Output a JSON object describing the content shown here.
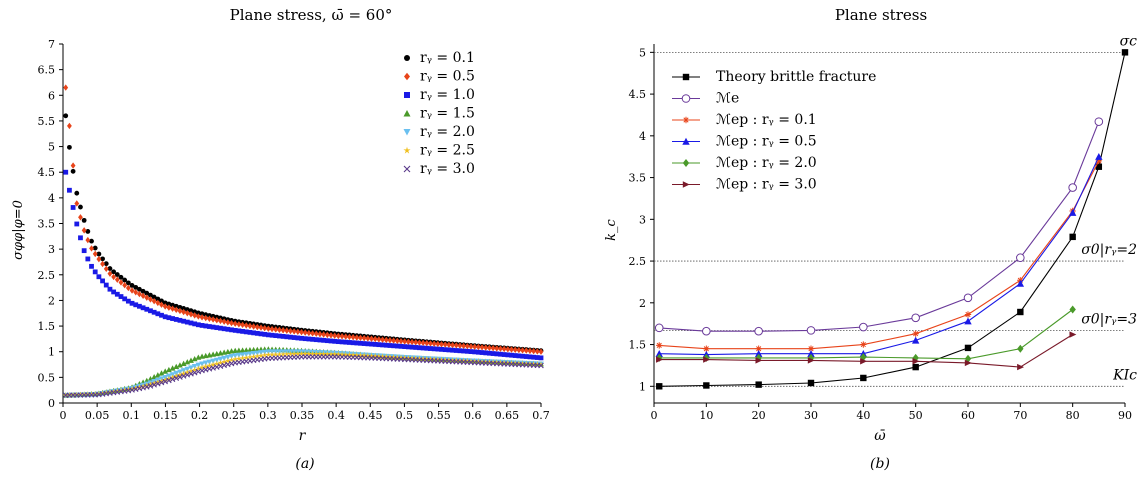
{
  "chart_data": [
    {
      "type": "scatter",
      "title": "Plane stress, ω̄ = 60°",
      "xlabel": "r",
      "ylabel": "σφφ|φ=0",
      "caption": "(a)",
      "xlim": [
        0,
        0.7
      ],
      "ylim": [
        0,
        7
      ],
      "xticks": [
        "0",
        "0.05",
        "0.1",
        "0.15",
        "0.2",
        "0.25",
        "0.3",
        "0.35",
        "0.4",
        "0.45",
        "0.5",
        "0.55",
        "0.6",
        "0.65",
        "0.7"
      ],
      "yticks": [
        "0",
        "0.5",
        "1",
        "1.5",
        "2",
        "2.5",
        "3",
        "3.5",
        "4",
        "4.5",
        "5",
        "5.5",
        "6",
        "6.5",
        "7"
      ],
      "legend_position": "top-right",
      "series": [
        {
          "name": "r_y = 0.1",
          "label": "rᵧ = 0.1",
          "color": "#000000",
          "marker": "circle",
          "x": [
            0.005,
            0.01,
            0.02,
            0.03,
            0.04,
            0.05,
            0.07,
            0.1,
            0.15,
            0.2,
            0.25,
            0.3,
            0.35,
            0.4,
            0.5,
            0.6,
            0.7
          ],
          "y": [
            5.6,
            4.9,
            4.1,
            3.6,
            3.2,
            2.95,
            2.6,
            2.3,
            1.95,
            1.75,
            1.6,
            1.5,
            1.42,
            1.35,
            1.23,
            1.12,
            1.02
          ]
        },
        {
          "name": "r_y = 0.5",
          "label": "rᵧ = 0.5",
          "color": "#e8441a",
          "marker": "diamond",
          "x": [
            0.005,
            0.01,
            0.02,
            0.03,
            0.04,
            0.05,
            0.07,
            0.1,
            0.15,
            0.2,
            0.25,
            0.3,
            0.35,
            0.4,
            0.5,
            0.6,
            0.7
          ],
          "y": [
            6.15,
            5.3,
            3.9,
            3.4,
            3.05,
            2.85,
            2.5,
            2.2,
            1.88,
            1.68,
            1.55,
            1.45,
            1.38,
            1.31,
            1.2,
            1.1,
            1.0
          ]
        },
        {
          "name": "r_y = 1.0",
          "label": "rᵧ = 1.0",
          "color": "#1a1ae6",
          "marker": "square",
          "x": [
            0.005,
            0.01,
            0.02,
            0.03,
            0.04,
            0.05,
            0.07,
            0.1,
            0.15,
            0.2,
            0.25,
            0.3,
            0.35,
            0.4,
            0.5,
            0.6,
            0.7
          ],
          "y": [
            4.5,
            4.1,
            3.5,
            3.0,
            2.7,
            2.5,
            2.2,
            1.95,
            1.68,
            1.52,
            1.42,
            1.33,
            1.26,
            1.2,
            1.1,
            1.0,
            0.88
          ]
        },
        {
          "name": "r_y = 1.5",
          "label": "rᵧ = 1.5",
          "color": "#4a9a2a",
          "marker": "triangle-up",
          "x": [
            0.005,
            0.05,
            0.1,
            0.125,
            0.15,
            0.2,
            0.25,
            0.3,
            0.35,
            0.4,
            0.45,
            0.5,
            0.6,
            0.7
          ],
          "y": [
            0.15,
            0.18,
            0.3,
            0.45,
            0.62,
            0.9,
            1.02,
            1.05,
            1.02,
            0.98,
            0.93,
            0.88,
            0.82,
            0.76
          ]
        },
        {
          "name": "r_y = 2.0",
          "label": "rᵧ = 2.0",
          "color": "#6ac0f0",
          "marker": "triangle-down",
          "x": [
            0.005,
            0.05,
            0.1,
            0.125,
            0.15,
            0.2,
            0.25,
            0.3,
            0.35,
            0.4,
            0.45,
            0.5,
            0.6,
            0.7
          ],
          "y": [
            0.15,
            0.17,
            0.28,
            0.38,
            0.5,
            0.75,
            0.92,
            1.0,
            1.0,
            0.97,
            0.93,
            0.89,
            0.82,
            0.76
          ]
        },
        {
          "name": "r_y = 2.5",
          "label": "rᵧ = 2.5",
          "color": "#f0c020",
          "marker": "star",
          "x": [
            0.005,
            0.05,
            0.1,
            0.125,
            0.15,
            0.2,
            0.25,
            0.3,
            0.35,
            0.4,
            0.45,
            0.5,
            0.6,
            0.7
          ],
          "y": [
            0.15,
            0.17,
            0.27,
            0.35,
            0.45,
            0.68,
            0.85,
            0.94,
            0.96,
            0.95,
            0.92,
            0.88,
            0.81,
            0.75
          ]
        },
        {
          "name": "r_y = 3.0",
          "label": "rᵧ = 3.0",
          "color": "#5a3a8a",
          "marker": "x",
          "x": [
            0.005,
            0.05,
            0.1,
            0.125,
            0.15,
            0.2,
            0.25,
            0.3,
            0.35,
            0.4,
            0.45,
            0.5,
            0.6,
            0.7
          ],
          "y": [
            0.15,
            0.16,
            0.25,
            0.32,
            0.42,
            0.62,
            0.78,
            0.87,
            0.9,
            0.9,
            0.88,
            0.85,
            0.79,
            0.73
          ]
        }
      ]
    },
    {
      "type": "line",
      "title": "Plane stress",
      "xlabel": "ω̄",
      "ylabel": "k_c",
      "caption": "(b)",
      "xlim": [
        0,
        90
      ],
      "ylim": [
        0.8,
        5.1
      ],
      "xticks": [
        "0",
        "10",
        "20",
        "30",
        "40",
        "50",
        "60",
        "70",
        "80",
        "90"
      ],
      "yticks": [
        "1",
        "1.5",
        "2",
        "2.5",
        "3",
        "3.5",
        "4",
        "4.5",
        "5"
      ],
      "legend_position": "top-left",
      "reference_lines": [
        {
          "y": 5.0,
          "label": "σc"
        },
        {
          "y": 2.5,
          "label": "σ0|rᵧ=2"
        },
        {
          "y": 1.667,
          "label": "σ0|rᵧ=3"
        },
        {
          "y": 1.0,
          "label": "KIc"
        }
      ],
      "series": [
        {
          "name": "Theory brittle fracture",
          "color": "#000000",
          "marker": "square",
          "x": [
            1,
            10,
            20,
            30,
            40,
            50,
            60,
            70,
            80,
            85,
            90
          ],
          "y": [
            1.0,
            1.01,
            1.02,
            1.04,
            1.1,
            1.23,
            1.46,
            1.89,
            2.79,
            3.63,
            5.0
          ]
        },
        {
          "name": "M_e",
          "label": "ℳe",
          "color": "#6a3a9a",
          "marker": "open-circle",
          "x": [
            1,
            10,
            20,
            30,
            40,
            50,
            60,
            70,
            80,
            85
          ],
          "y": [
            1.7,
            1.66,
            1.66,
            1.67,
            1.71,
            1.82,
            2.06,
            2.54,
            3.38,
            4.17
          ]
        },
        {
          "name": "M_ep : r_y = 0.1",
          "label": "ℳep : rᵧ = 0.1",
          "color": "#e8441a",
          "marker": "asterisk",
          "x": [
            1,
            10,
            20,
            30,
            40,
            50,
            60,
            70,
            80,
            85
          ],
          "y": [
            1.49,
            1.45,
            1.45,
            1.45,
            1.5,
            1.63,
            1.86,
            2.27,
            3.1,
            3.7
          ]
        },
        {
          "name": "M_ep : r_y = 0.5",
          "label": "ℳep : rᵧ = 0.5",
          "color": "#1a1ae6",
          "marker": "triangle-up",
          "x": [
            1,
            10,
            20,
            30,
            40,
            50,
            60,
            70,
            80,
            85
          ],
          "y": [
            1.39,
            1.38,
            1.39,
            1.39,
            1.39,
            1.55,
            1.78,
            2.23,
            3.08,
            3.75
          ]
        },
        {
          "name": "M_ep : r_y = 2.0",
          "label": "ℳep : rᵧ = 2.0",
          "color": "#4a9a2a",
          "marker": "diamond",
          "x": [
            1,
            10,
            20,
            30,
            40,
            50,
            60,
            70,
            80
          ],
          "y": [
            1.34,
            1.34,
            1.34,
            1.34,
            1.35,
            1.34,
            1.33,
            1.45,
            1.92
          ]
        },
        {
          "name": "M_ep : r_y = 3.0",
          "label": "ℳep : rᵧ = 3.0",
          "color": "#7a1a2a",
          "marker": "triangle-right",
          "x": [
            1,
            10,
            20,
            30,
            40,
            50,
            60,
            70,
            80
          ],
          "y": [
            1.32,
            1.32,
            1.31,
            1.31,
            1.3,
            1.3,
            1.28,
            1.23,
            1.62
          ]
        }
      ]
    }
  ]
}
